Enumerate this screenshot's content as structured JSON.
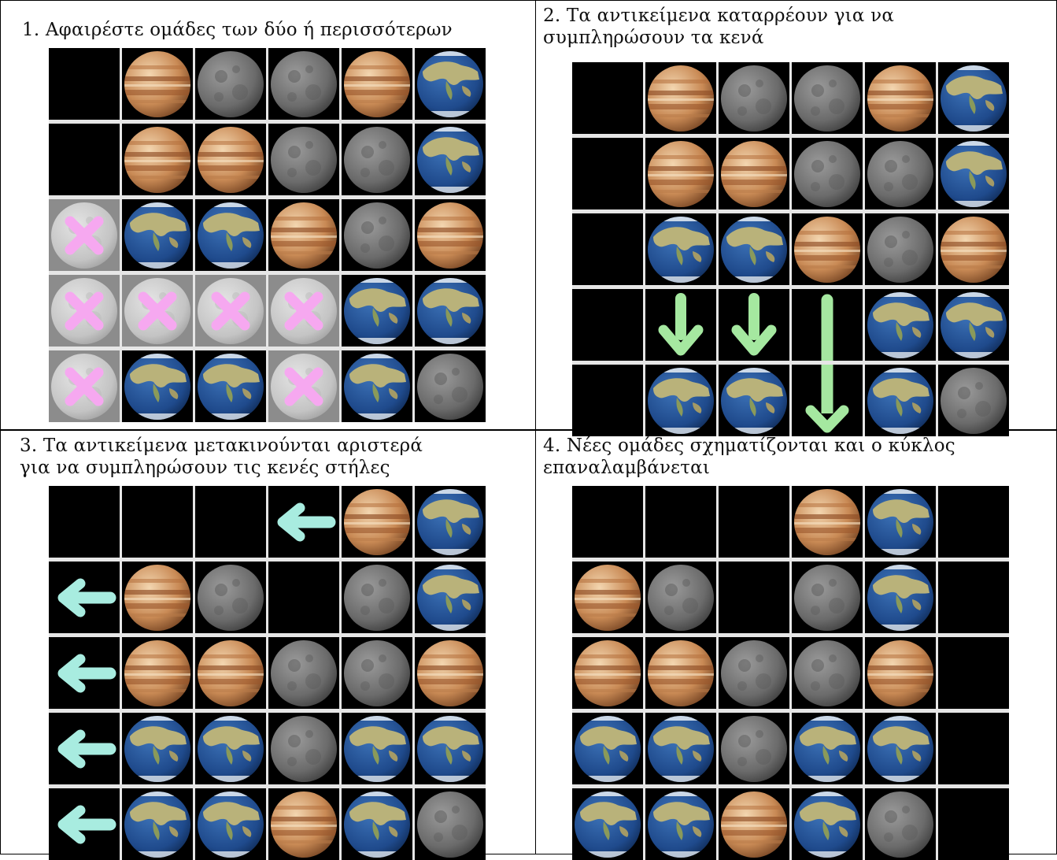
{
  "legend": {
    "J": "jupiter-icon",
    "M": "moon-icon",
    "E": "earth-icon",
    ".": "empty-cell",
    "x": "removed-moon-icon",
    "dS": "down-arrow-icon",
    "dL": "long-down-arrow-icon",
    "L": "left-arrow-icon"
  },
  "colors": {
    "cell_background": "#000000",
    "grid_lines": "#e6e6e6",
    "remove_mark": "#f6a8f0",
    "fall_arrow": "#a5e8a0",
    "shift_arrow": "#a8ece0"
  },
  "panels": [
    {
      "id": "panel-1",
      "caption": [
        "1. Αφαιρέστε ομάδες των δύο ή περισσότερων"
      ],
      "grid": [
        [
          ".",
          "J",
          "M",
          "M",
          "J",
          "E"
        ],
        [
          ".",
          "J",
          "J",
          "M",
          "M",
          "E"
        ],
        [
          "x",
          "E",
          "E",
          "J",
          "M",
          "J"
        ],
        [
          "x",
          "x",
          "x",
          "x",
          "E",
          "E"
        ],
        [
          "x",
          "E",
          "E",
          "x",
          "E",
          "M"
        ]
      ]
    },
    {
      "id": "panel-2",
      "caption": [
        "2. Τα αντικείμενα καταρρέουν για να",
        "συμπληρώσουν τα κενά"
      ],
      "grid": [
        [
          ".",
          "J",
          "M",
          "M",
          "J",
          "E"
        ],
        [
          ".",
          "J",
          "J",
          "M",
          "M",
          "E"
        ],
        [
          ".",
          "E",
          "E",
          "J",
          "M",
          "J"
        ],
        [
          ".",
          "dS",
          "dS",
          "dL",
          "E",
          "E"
        ],
        [
          ".",
          "E",
          "E",
          ".",
          "E",
          "M"
        ]
      ]
    },
    {
      "id": "panel-3",
      "caption": [
        "3. Τα αντικείμενα μετακινούνται αριστερά",
        "για να συμπληρώσουν τις κενές στήλες"
      ],
      "grid": [
        [
          ".",
          ".",
          ".",
          "L",
          "J",
          "E"
        ],
        [
          "L",
          "J",
          "M",
          ".",
          "M",
          "E"
        ],
        [
          "L",
          "J",
          "J",
          "M",
          "M",
          "J"
        ],
        [
          "L",
          "E",
          "E",
          "M",
          "E",
          "E"
        ],
        [
          "L",
          "E",
          "E",
          "J",
          "E",
          "M"
        ]
      ]
    },
    {
      "id": "panel-4",
      "caption": [
        "4. Νέες ομάδες σχηματίζονται και ο κύκλος",
        "επαναλαμβάνεται"
      ],
      "grid": [
        [
          ".",
          ".",
          ".",
          "J",
          "E",
          "."
        ],
        [
          "J",
          "M",
          ".",
          "M",
          "E",
          "."
        ],
        [
          "J",
          "J",
          "M",
          "M",
          "J",
          "."
        ],
        [
          "E",
          "E",
          "M",
          "E",
          "E",
          "."
        ],
        [
          "E",
          "E",
          "J",
          "E",
          "M",
          "."
        ]
      ]
    }
  ]
}
